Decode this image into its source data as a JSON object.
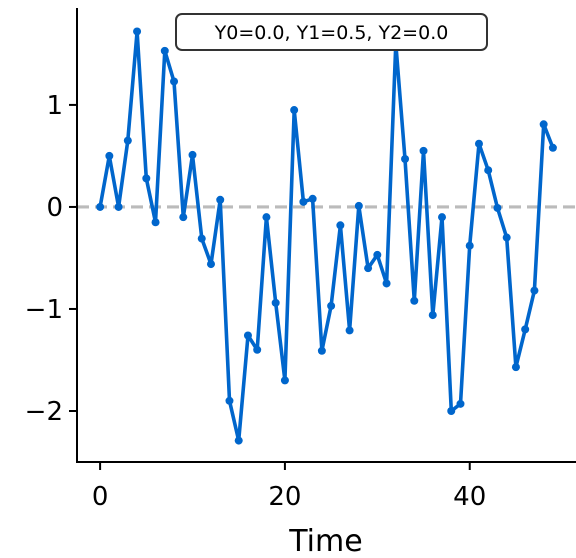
{
  "chart_data": {
    "type": "line",
    "title": "",
    "xlabel": "Time",
    "ylabel": "",
    "xlim": [
      -2.5,
      51.5
    ],
    "ylim": [
      -2.5,
      1.95
    ],
    "x_ticks": [
      0,
      20,
      40
    ],
    "y_ticks": [
      -2,
      -1,
      0,
      1
    ],
    "x_tick_labels": [
      "0",
      "20",
      "40"
    ],
    "y_tick_labels": [
      "−2",
      "−1",
      "0",
      "1"
    ],
    "annotation": "Y0=0.0, Y1=0.5, Y2=0.0",
    "reference_line": {
      "y": 0,
      "style": "dashed",
      "color": "#bbbbbb"
    },
    "grid": false,
    "legend": "none",
    "series": [
      {
        "color": "#0066cc",
        "marker": "circle",
        "x": [
          0,
          1,
          2,
          3,
          4,
          5,
          6,
          7,
          8,
          9,
          10,
          11,
          12,
          13,
          14,
          15,
          16,
          17,
          18,
          19,
          20,
          21,
          22,
          23,
          24,
          25,
          26,
          27,
          28,
          29,
          30,
          31,
          32,
          33,
          34,
          35,
          36,
          37,
          38,
          39,
          40,
          41,
          42,
          43,
          44,
          45,
          46,
          47,
          48,
          49
        ],
        "y": [
          0.0,
          0.5,
          0.0,
          0.65,
          1.72,
          0.28,
          -0.15,
          1.53,
          1.23,
          -0.1,
          0.51,
          -0.31,
          -0.56,
          0.07,
          -1.9,
          -2.29,
          -1.26,
          -1.4,
          -0.1,
          -0.94,
          -1.7,
          0.95,
          0.05,
          0.08,
          -1.41,
          -0.97,
          -0.18,
          -1.21,
          0.01,
          -0.6,
          -0.47,
          -0.75,
          1.6,
          0.47,
          -0.92,
          0.55,
          -1.06,
          -0.1,
          -2.0,
          -1.93,
          -0.38,
          0.62,
          0.36,
          -0.01,
          -0.3,
          -1.57,
          -1.2,
          -0.82,
          0.81,
          0.58
        ]
      }
    ]
  }
}
